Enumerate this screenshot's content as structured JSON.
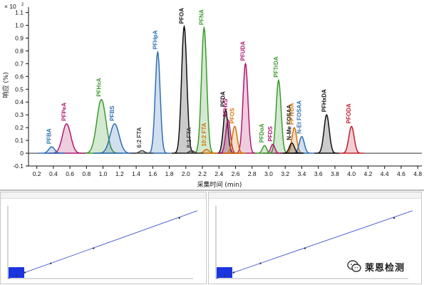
{
  "chart_data": [
    {
      "type": "line",
      "title": "",
      "y_multiplier_label": "× 10",
      "y_multiplier_exp": "2",
      "ylabel": "响应 (%)",
      "xlabel": "采集时间 (min)",
      "xlim": [
        0.1,
        4.85
      ],
      "ylim": [
        -0.1,
        1.12
      ],
      "x_ticks": [
        "0.2",
        "0.4",
        "0.6",
        "0.8",
        "1.0",
        "1.2",
        "1.4",
        "1.6",
        "1.8",
        "2.0",
        "2.2",
        "2.4",
        "2.6",
        "2.8",
        "3.0",
        "3.2",
        "3.4",
        "3.6",
        "3.8",
        "4.0",
        "4.2",
        "4.4",
        "4.6",
        "4.8"
      ],
      "y_ticks": [
        "-0.1",
        "0",
        "0.1",
        "0.2",
        "0.3",
        "0.4",
        "0.5",
        "0.6",
        "0.7",
        "0.8",
        "0.9",
        "1.0",
        "1.1"
      ],
      "grid": false,
      "peaks": [
        {
          "name": "PFBA",
          "rt": 0.38,
          "height": 0.05,
          "width": 0.035,
          "color": "#2f6fb5"
        },
        {
          "name": "PFPeA",
          "rt": 0.56,
          "height": 0.23,
          "width": 0.05,
          "color": "#b01a6e"
        },
        {
          "name": "PFHxA",
          "rt": 0.98,
          "height": 0.42,
          "width": 0.055,
          "color": "#3c9a2e"
        },
        {
          "name": "PFBS",
          "rt": 1.14,
          "height": 0.23,
          "width": 0.055,
          "color": "#2f6fb5"
        },
        {
          "name": "6:2 FTA",
          "rt": 1.47,
          "height": 0.02,
          "width": 0.03,
          "color": "#444444"
        },
        {
          "name": "PFHpA",
          "rt": 1.66,
          "height": 0.79,
          "width": 0.03,
          "color": "#2f6fb5"
        },
        {
          "name": "PFOA",
          "rt": 1.98,
          "height": 0.99,
          "width": 0.032,
          "color": "#111111"
        },
        {
          "name": "8:2 FTA",
          "rt": 2.07,
          "height": 0.02,
          "width": 0.03,
          "color": "#444444"
        },
        {
          "name": "PFNA",
          "rt": 2.22,
          "height": 0.98,
          "width": 0.032,
          "color": "#3c9a2e"
        },
        {
          "name": "10:2 FTA",
          "rt": 2.25,
          "height": 0.03,
          "width": 0.03,
          "color": "#d4740c"
        },
        {
          "name": "PFDA",
          "rt": 2.48,
          "height": 0.34,
          "width": 0.028,
          "color": "#111111"
        },
        {
          "name": "PFHxS",
          "rt": 2.51,
          "height": 0.26,
          "width": 0.028,
          "color": "#b01a6e"
        },
        {
          "name": "PFOS",
          "rt": 2.59,
          "height": 0.21,
          "width": 0.03,
          "color": "#d4740c"
        },
        {
          "name": "PFUDA",
          "rt": 2.72,
          "height": 0.7,
          "width": 0.03,
          "color": "#b01a6e"
        },
        {
          "name": "PFDoA",
          "rt": 2.95,
          "height": 0.06,
          "width": 0.025,
          "color": "#3c9a2e"
        },
        {
          "name": "PFDS",
          "rt": 3.05,
          "height": 0.07,
          "width": 0.025,
          "color": "#b01a6e"
        },
        {
          "name": "PFTrDA",
          "rt": 3.12,
          "height": 0.57,
          "width": 0.03,
          "color": "#3c9a2e"
        },
        {
          "name": "N-Me FOSAA",
          "rt": 3.28,
          "height": 0.08,
          "width": 0.03,
          "color": "#111111"
        },
        {
          "name": "PFTeDA",
          "rt": 3.31,
          "height": 0.2,
          "width": 0.028,
          "color": "#d4740c"
        },
        {
          "name": "N-Et FOSAA",
          "rt": 3.4,
          "height": 0.13,
          "width": 0.03,
          "color": "#2f6fb5"
        },
        {
          "name": "PFHxDA",
          "rt": 3.7,
          "height": 0.3,
          "width": 0.032,
          "color": "#111111"
        },
        {
          "name": "PFODA",
          "rt": 4.0,
          "height": 0.21,
          "width": 0.032,
          "color": "#c0202e"
        }
      ]
    },
    {
      "type": "scatter",
      "title": "",
      "x": [
        1,
        2,
        5,
        10,
        20
      ],
      "y": [
        1,
        2,
        5,
        10,
        20
      ],
      "line_color": "#2a3fd0",
      "inset_color": "#1a35e0"
    },
    {
      "type": "scatter",
      "title": "",
      "x": [
        1,
        2,
        5,
        10,
        20
      ],
      "y": [
        1,
        2,
        5,
        10,
        20
      ],
      "line_color": "#2a3fd0",
      "inset_color": "#1a35e0"
    }
  ],
  "watermark": {
    "text": "莱恩检测"
  }
}
